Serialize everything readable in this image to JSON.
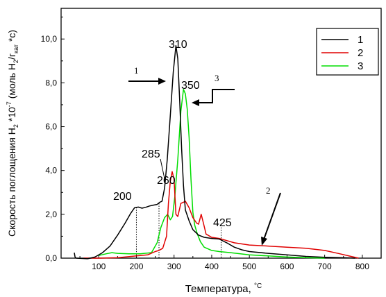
{
  "chart_data": {
    "type": "line",
    "xlabel": "Температура, ",
    "xlabel_unit": "°C",
    "ylabel_parts": [
      "Скорость поглощения H",
      "2",
      " *10",
      "-7",
      " (моль H",
      "2",
      "/г",
      "кат",
      " *c)"
    ],
    "xlim": [
      0,
      850
    ],
    "ylim": [
      0,
      11.4
    ],
    "xticks": [
      0,
      100,
      200,
      300,
      400,
      500,
      600,
      700,
      800
    ],
    "yticks": [
      0,
      2,
      4,
      6,
      8,
      10
    ],
    "ytick_labels": [
      "0,0",
      "2,0",
      "4,0",
      "6,0",
      "8,0",
      "10,0"
    ],
    "legend_position": "top-right",
    "series": [
      {
        "name": "1",
        "color": "#000000",
        "points": [
          [
            35,
            0.25
          ],
          [
            37,
            0.05
          ],
          [
            40,
            0
          ],
          [
            70,
            -0.03
          ],
          [
            90,
            0.05
          ],
          [
            110,
            0.25
          ],
          [
            130,
            0.55
          ],
          [
            150,
            1.05
          ],
          [
            170,
            1.6
          ],
          [
            185,
            2.05
          ],
          [
            195,
            2.3
          ],
          [
            205,
            2.33
          ],
          [
            215,
            2.28
          ],
          [
            225,
            2.32
          ],
          [
            235,
            2.38
          ],
          [
            245,
            2.42
          ],
          [
            255,
            2.45
          ],
          [
            262,
            2.55
          ],
          [
            268,
            2.6
          ],
          [
            275,
            3.2
          ],
          [
            282,
            4.5
          ],
          [
            290,
            6.5
          ],
          [
            298,
            8.5
          ],
          [
            305,
            9.7
          ],
          [
            310,
            9.1
          ],
          [
            315,
            7.2
          ],
          [
            320,
            5.0
          ],
          [
            325,
            3.3
          ],
          [
            330,
            2.2
          ],
          [
            340,
            1.7
          ],
          [
            350,
            1.3
          ],
          [
            365,
            1.05
          ],
          [
            380,
            0.95
          ],
          [
            400,
            0.9
          ],
          [
            420,
            0.87
          ],
          [
            440,
            0.7
          ],
          [
            460,
            0.5
          ],
          [
            480,
            0.38
          ],
          [
            500,
            0.3
          ],
          [
            550,
            0.22
          ],
          [
            600,
            0.15
          ],
          [
            650,
            0.08
          ],
          [
            700,
            0.04
          ],
          [
            750,
            0.02
          ],
          [
            780,
            0
          ]
        ]
      },
      {
        "name": "2",
        "color": "#e00000",
        "points": [
          [
            60,
            0
          ],
          [
            100,
            0
          ],
          [
            150,
            0.02
          ],
          [
            200,
            0.1
          ],
          [
            230,
            0.15
          ],
          [
            250,
            0.3
          ],
          [
            260,
            0.35
          ],
          [
            270,
            0.45
          ],
          [
            280,
            1.0
          ],
          [
            285,
            2.5
          ],
          [
            290,
            3.5
          ],
          [
            295,
            3.95
          ],
          [
            300,
            3.6
          ],
          [
            305,
            2.0
          ],
          [
            310,
            1.9
          ],
          [
            318,
            2.5
          ],
          [
            325,
            2.55
          ],
          [
            330,
            2.6
          ],
          [
            340,
            2.3
          ],
          [
            350,
            1.85
          ],
          [
            360,
            1.6
          ],
          [
            365,
            1.55
          ],
          [
            372,
            2.0
          ],
          [
            378,
            1.6
          ],
          [
            385,
            1.1
          ],
          [
            400,
            0.95
          ],
          [
            420,
            0.9
          ],
          [
            440,
            0.8
          ],
          [
            460,
            0.7
          ],
          [
            500,
            0.6
          ],
          [
            550,
            0.55
          ],
          [
            600,
            0.5
          ],
          [
            650,
            0.45
          ],
          [
            700,
            0.35
          ],
          [
            740,
            0.2
          ],
          [
            770,
            0.08
          ],
          [
            790,
            0
          ]
        ]
      },
      {
        "name": "3",
        "color": "#00dd00",
        "points": [
          [
            100,
            0.12
          ],
          [
            120,
            0.2
          ],
          [
            135,
            0.25
          ],
          [
            150,
            0.22
          ],
          [
            180,
            0.2
          ],
          [
            210,
            0.2
          ],
          [
            240,
            0.25
          ],
          [
            255,
            0.7
          ],
          [
            265,
            1.4
          ],
          [
            275,
            1.85
          ],
          [
            283,
            2.0
          ],
          [
            290,
            1.75
          ],
          [
            296,
            1.9
          ],
          [
            302,
            2.8
          ],
          [
            310,
            4.5
          ],
          [
            318,
            6.7
          ],
          [
            325,
            7.7
          ],
          [
            330,
            7.5
          ],
          [
            335,
            6.8
          ],
          [
            340,
            5.5
          ],
          [
            345,
            3.6
          ],
          [
            350,
            2.1
          ],
          [
            355,
            1.5
          ],
          [
            362,
            1.1
          ],
          [
            370,
            0.75
          ],
          [
            380,
            0.5
          ],
          [
            400,
            0.35
          ],
          [
            420,
            0.3
          ],
          [
            450,
            0.25
          ],
          [
            500,
            0.15
          ],
          [
            550,
            0.1
          ],
          [
            600,
            0.05
          ],
          [
            650,
            0.02
          ],
          [
            700,
            0
          ]
        ]
      }
    ],
    "peak_labels": [
      {
        "text": "200",
        "x": 200
      },
      {
        "text": "260",
        "x": 260
      },
      {
        "text": "285",
        "x": 285
      },
      {
        "text": "310",
        "x": 310
      },
      {
        "text": "350",
        "x": 350
      },
      {
        "text": "425",
        "x": 425
      }
    ],
    "arrow_labels": [
      "1",
      "2",
      "3"
    ]
  }
}
